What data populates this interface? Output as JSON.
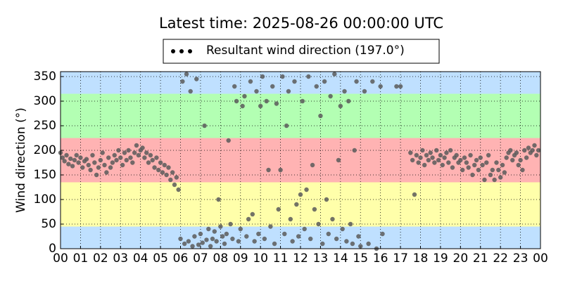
{
  "chart_data": {
    "type": "scatter",
    "title": "Latest time: 2025-08-26 00:00:00 UTC",
    "y_label": "Wind direction (°)",
    "xlim": [
      0,
      24
    ],
    "ylim": [
      0,
      360
    ],
    "xticks": [
      {
        "value": 0,
        "label": "00"
      },
      {
        "value": 1,
        "label": "01"
      },
      {
        "value": 2,
        "label": "02"
      },
      {
        "value": 3,
        "label": "03"
      },
      {
        "value": 4,
        "label": "04"
      },
      {
        "value": 5,
        "label": "05"
      },
      {
        "value": 6,
        "label": "06"
      },
      {
        "value": 7,
        "label": "07"
      },
      {
        "value": 8,
        "label": "08"
      },
      {
        "value": 9,
        "label": "09"
      },
      10,
      11,
      12,
      13,
      14,
      15,
      16,
      17,
      18,
      19,
      20,
      21,
      22,
      23,
      {
        "value": 24,
        "label": "00"
      }
    ],
    "yticks": [
      0,
      50,
      100,
      150,
      200,
      250,
      300,
      350
    ],
    "grid": true,
    "bands": [
      {
        "from": 0,
        "to": 45,
        "color": "#bfe0ff"
      },
      {
        "from": 45,
        "to": 135,
        "color": "#ffffaa"
      },
      {
        "from": 135,
        "to": 225,
        "color": "#ffb3b3"
      },
      {
        "from": 225,
        "to": 315,
        "color": "#b3ffb3"
      },
      {
        "from": 315,
        "to": 360,
        "color": "#bfe0ff"
      }
    ],
    "x": [
      0.0,
      0.1,
      0.2,
      0.3,
      0.4,
      0.5,
      0.6,
      0.7,
      0.8,
      0.9,
      1.0,
      1.1,
      1.2,
      1.3,
      1.4,
      1.5,
      1.6,
      1.7,
      1.8,
      1.9,
      2.0,
      2.1,
      2.2,
      2.3,
      2.4,
      2.5,
      2.6,
      2.7,
      2.8,
      2.9,
      3.0,
      3.1,
      3.2,
      3.3,
      3.4,
      3.5,
      3.6,
      3.7,
      3.8,
      3.9,
      4.0,
      4.1,
      4.2,
      4.3,
      4.4,
      4.5,
      4.6,
      4.7,
      4.8,
      4.9,
      5.0,
      5.1,
      5.2,
      5.3,
      5.4,
      5.5,
      5.6,
      5.7,
      5.8,
      5.9,
      6.0,
      6.1,
      6.2,
      6.3,
      6.4,
      6.5,
      6.6,
      6.7,
      6.8,
      6.9,
      7.0,
      7.1,
      7.2,
      7.3,
      7.4,
      7.5,
      7.6,
      7.7,
      7.8,
      7.9,
      8.0,
      8.1,
      8.2,
      8.3,
      8.4,
      8.5,
      8.6,
      8.7,
      8.8,
      8.9,
      9.0,
      9.1,
      9.2,
      9.3,
      9.4,
      9.5,
      9.6,
      9.7,
      9.8,
      9.9,
      10.0,
      10.1,
      10.2,
      10.3,
      10.4,
      10.5,
      10.6,
      10.7,
      10.8,
      10.9,
      11.0,
      11.1,
      11.2,
      11.3,
      11.4,
      11.5,
      11.6,
      11.7,
      11.8,
      11.9,
      12.0,
      12.1,
      12.2,
      12.3,
      12.4,
      12.5,
      12.6,
      12.7,
      12.8,
      12.9,
      13.0,
      13.1,
      13.2,
      13.3,
      13.4,
      13.5,
      13.6,
      13.7,
      13.8,
      13.9,
      14.0,
      14.1,
      14.2,
      14.3,
      14.4,
      14.5,
      14.6,
      14.7,
      14.8,
      14.9,
      15.0,
      15.2,
      15.4,
      15.6,
      15.8,
      16.0,
      16.1,
      16.8,
      17.0,
      17.5,
      17.6,
      17.7,
      17.8,
      17.9,
      18.0,
      18.1,
      18.2,
      18.3,
      18.4,
      18.5,
      18.6,
      18.7,
      18.8,
      18.9,
      19.0,
      19.1,
      19.2,
      19.3,
      19.4,
      19.5,
      19.6,
      19.7,
      19.8,
      19.9,
      20.0,
      20.1,
      20.2,
      20.3,
      20.4,
      20.5,
      20.6,
      20.7,
      20.8,
      20.9,
      21.0,
      21.1,
      21.2,
      21.3,
      21.4,
      21.5,
      21.6,
      21.7,
      21.8,
      21.9,
      22.0,
      22.1,
      22.2,
      22.3,
      22.4,
      22.5,
      22.6,
      22.7,
      22.8,
      22.9,
      23.0,
      23.1,
      23.2,
      23.3,
      23.4,
      23.5,
      23.6,
      23.7,
      23.8,
      23.9
    ],
    "series": [
      {
        "name": "Resultant wind direction (197.0°)",
        "color": "#5a5a5a",
        "values": [
          195,
          185,
          178,
          190,
          172,
          183,
          168,
          180,
          190,
          175,
          185,
          165,
          178,
          182,
          170,
          160,
          190,
          175,
          150,
          165,
          180,
          195,
          170,
          155,
          185,
          165,
          175,
          190,
          180,
          200,
          185,
          170,
          195,
          180,
          200,
          185,
          175,
          195,
          210,
          190,
          200,
          205,
          185,
          195,
          175,
          190,
          180,
          165,
          185,
          160,
          175,
          155,
          170,
          150,
          165,
          140,
          155,
          130,
          145,
          120,
          20,
          340,
          10,
          355,
          15,
          320,
          5,
          25,
          345,
          8,
          30,
          12,
          250,
          18,
          40,
          5,
          20,
          35,
          15,
          100,
          45,
          25,
          10,
          30,
          220,
          50,
          20,
          330,
          300,
          15,
          40,
          290,
          310,
          25,
          60,
          340,
          70,
          15,
          320,
          30,
          290,
          350,
          20,
          300,
          160,
          45,
          330,
          10,
          295,
          80,
          160,
          350,
          30,
          250,
          320,
          60,
          15,
          340,
          90,
          25,
          110,
          300,
          40,
          120,
          350,
          20,
          170,
          80,
          330,
          50,
          270,
          10,
          340,
          100,
          30,
          310,
          60,
          355,
          20,
          180,
          290,
          40,
          320,
          15,
          300,
          50,
          10,
          200,
          340,
          25,
          5,
          320,
          10,
          340,
          0,
          330,
          30,
          330,
          330,
          195,
          180,
          110,
          190,
          175,
          185,
          200,
          170,
          190,
          180,
          195,
          185,
          175,
          200,
          180,
          190,
          170,
          185,
          195,
          175,
          200,
          165,
          185,
          190,
          175,
          180,
          160,
          185,
          175,
          165,
          190,
          150,
          170,
          180,
          160,
          185,
          170,
          140,
          175,
          190,
          150,
          160,
          140,
          175,
          160,
          145,
          170,
          155,
          185,
          195,
          200,
          180,
          190,
          195,
          170,
          180,
          160,
          200,
          185,
          205,
          195,
          200,
          210,
          190,
          200
        ]
      }
    ]
  }
}
